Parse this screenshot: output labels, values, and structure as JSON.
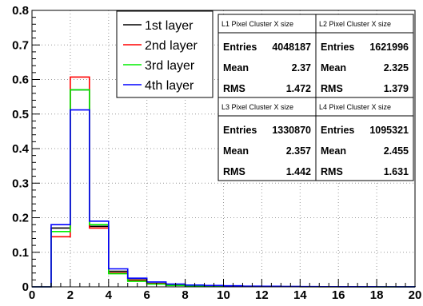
{
  "chart_data": {
    "type": "histogram",
    "title": "",
    "xlabel": "",
    "ylabel": "",
    "xlim": [
      0,
      20
    ],
    "ylim": [
      0,
      0.8
    ],
    "x_ticks": [
      "0",
      "2",
      "4",
      "6",
      "8",
      "10",
      "12",
      "14",
      "16",
      "18",
      "20"
    ],
    "y_ticks": [
      "0",
      "0.1",
      "0.2",
      "0.3",
      "0.4",
      "0.5",
      "0.6",
      "0.7",
      "0.8"
    ],
    "grid": true,
    "legend_position": "top-center",
    "bin_edges": [
      0,
      1,
      2,
      3,
      4,
      5,
      6,
      7,
      8,
      9,
      10,
      11,
      12,
      13,
      14,
      15,
      16,
      17,
      18,
      19,
      20
    ],
    "series": [
      {
        "name": "1st layer",
        "color": "#000000",
        "values": [
          0,
          0.17,
          0.57,
          0.175,
          0.045,
          0.02,
          0.01,
          0.006,
          0.004,
          0.003,
          0.002,
          0.0015,
          0.001,
          0.0008,
          0.0006,
          0.0005,
          0.0004,
          0.0003,
          0.0002,
          0.0002
        ]
      },
      {
        "name": "2nd layer",
        "color": "#ff0000",
        "values": [
          0,
          0.145,
          0.607,
          0.17,
          0.04,
          0.018,
          0.009,
          0.005,
          0.003,
          0.002,
          0.0015,
          0.001,
          0.0008,
          0.0006,
          0.0005,
          0.0004,
          0.0003,
          0.0002,
          0.0002,
          0.0001
        ]
      },
      {
        "name": "3rd layer",
        "color": "#00ee00",
        "values": [
          0,
          0.16,
          0.57,
          0.18,
          0.038,
          0.016,
          0.008,
          0.004,
          0.003,
          0.002,
          0.0015,
          0.001,
          0.0008,
          0.0006,
          0.0005,
          0.0004,
          0.0003,
          0.0002,
          0.0002,
          0.0001
        ]
      },
      {
        "name": "4th layer",
        "color": "#0000ff",
        "values": [
          0,
          0.18,
          0.512,
          0.19,
          0.052,
          0.025,
          0.014,
          0.008,
          0.005,
          0.004,
          0.003,
          0.002,
          0.0015,
          0.001,
          0.0008,
          0.0006,
          0.0005,
          0.0004,
          0.0003,
          0.0002
        ]
      }
    ],
    "stat_boxes": [
      {
        "title": "L1 Pixel Cluster X size",
        "entries": "4048187",
        "mean": "2.37",
        "rms": "1.472"
      },
      {
        "title": "L2 Pixel Cluster X size",
        "entries": "1621996",
        "mean": "2.325",
        "rms": "1.379"
      },
      {
        "title": "L3 Pixel Cluster X size",
        "entries": "1330870",
        "mean": "2.357",
        "rms": "1.442"
      },
      {
        "title": "L4 Pixel Cluster X size",
        "entries": "1095321",
        "mean": "2.455",
        "rms": "1.631"
      }
    ],
    "stat_labels": {
      "entries": "Entries",
      "mean": "Mean",
      "rms": "RMS"
    }
  }
}
